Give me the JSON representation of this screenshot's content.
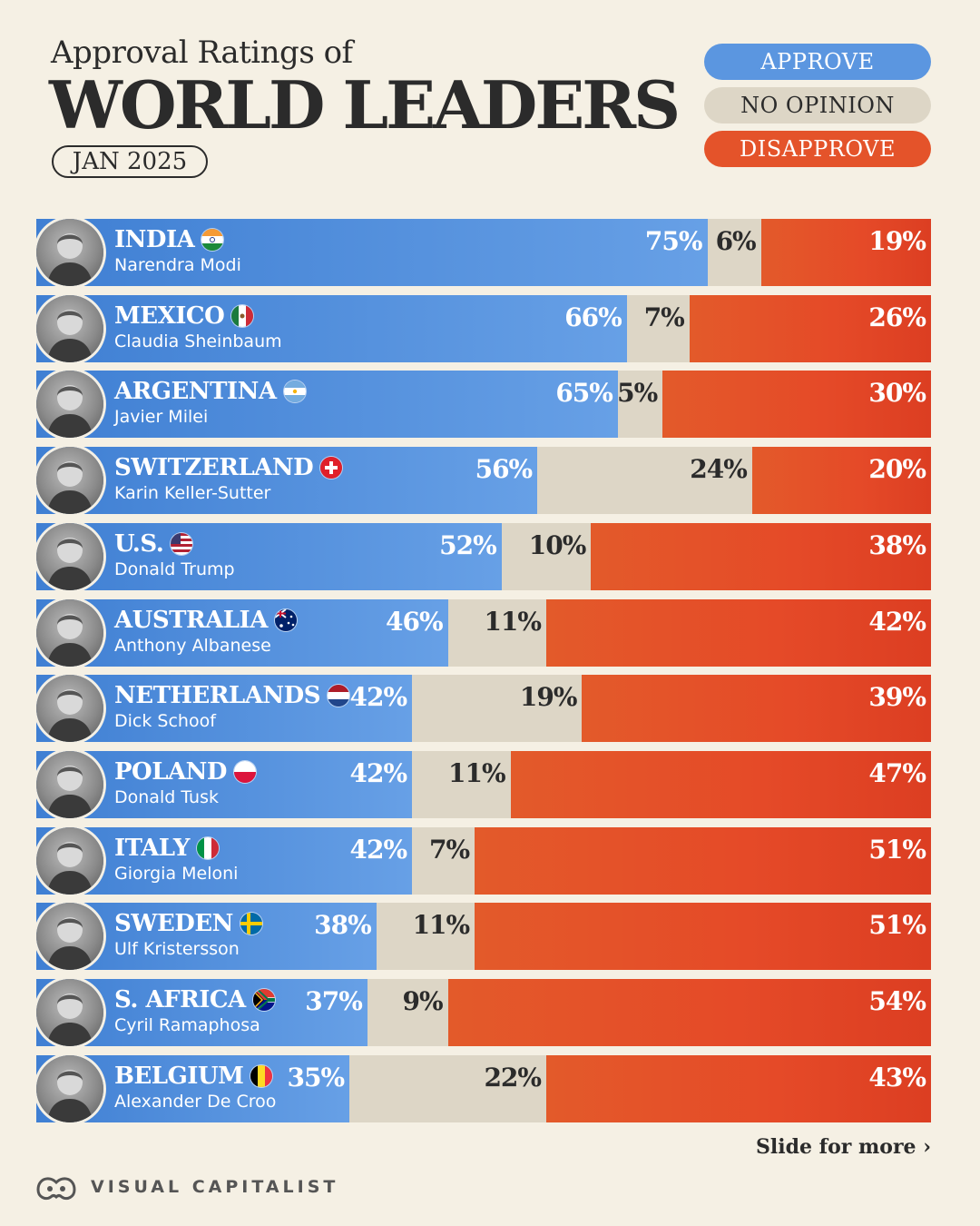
{
  "header": {
    "subtitle": "Approval Ratings of",
    "title": "WORLD LEADERS",
    "date": "JAN 2025"
  },
  "legend": {
    "approve": "APPROVE",
    "no_opinion": "NO OPINION",
    "disapprove": "DISAPPROVE"
  },
  "colors": {
    "approve": "#5b96e0",
    "no_opinion": "#ddd6c6",
    "disapprove": "#e4532a",
    "background": "#f5f0e4"
  },
  "chart_data": {
    "type": "bar",
    "orientation": "horizontal",
    "stacked": true,
    "unit": "%",
    "series": [
      {
        "name": "APPROVE",
        "values": [
          75,
          66,
          65,
          56,
          52,
          46,
          42,
          42,
          42,
          38,
          37,
          35
        ]
      },
      {
        "name": "NO OPINION",
        "values": [
          6,
          7,
          5,
          24,
          10,
          11,
          19,
          11,
          7,
          11,
          9,
          22
        ]
      },
      {
        "name": "DISAPPROVE",
        "values": [
          19,
          26,
          30,
          20,
          38,
          42,
          39,
          47,
          51,
          51,
          54,
          43
        ]
      }
    ],
    "rows": [
      {
        "country": "INDIA",
        "leader": "Narendra Modi",
        "flag": "flag-india-icon",
        "approve": 75,
        "no_opinion": 6,
        "disapprove": 19
      },
      {
        "country": "MEXICO",
        "leader": "Claudia Sheinbaum",
        "flag": "flag-mexico-icon",
        "approve": 66,
        "no_opinion": 7,
        "disapprove": 26
      },
      {
        "country": "ARGENTINA",
        "leader": "Javier Milei",
        "flag": "flag-argentina-icon",
        "approve": 65,
        "no_opinion": 5,
        "disapprove": 30
      },
      {
        "country": "SWITZERLAND",
        "leader": "Karin Keller-Sutter",
        "flag": "flag-switzerland-icon",
        "approve": 56,
        "no_opinion": 24,
        "disapprove": 20
      },
      {
        "country": "U.S.",
        "leader": "Donald Trump",
        "flag": "flag-usa-icon",
        "approve": 52,
        "no_opinion": 10,
        "disapprove": 38
      },
      {
        "country": "AUSTRALIA",
        "leader": "Anthony Albanese",
        "flag": "flag-australia-icon",
        "approve": 46,
        "no_opinion": 11,
        "disapprove": 42
      },
      {
        "country": "NETHERLANDS",
        "leader": "Dick Schoof",
        "flag": "flag-netherlands-icon",
        "approve": 42,
        "no_opinion": 19,
        "disapprove": 39
      },
      {
        "country": "POLAND",
        "leader": "Donald Tusk",
        "flag": "flag-poland-icon",
        "approve": 42,
        "no_opinion": 11,
        "disapprove": 47
      },
      {
        "country": "ITALY",
        "leader": "Giorgia Meloni",
        "flag": "flag-italy-icon",
        "approve": 42,
        "no_opinion": 7,
        "disapprove": 51
      },
      {
        "country": "SWEDEN",
        "leader": "Ulf Kristersson",
        "flag": "flag-sweden-icon",
        "approve": 38,
        "no_opinion": 11,
        "disapprove": 51
      },
      {
        "country": "S. AFRICA",
        "leader": "Cyril Ramaphosa",
        "flag": "flag-south-africa-icon",
        "approve": 37,
        "no_opinion": 9,
        "disapprove": 54
      },
      {
        "country": "BELGIUM",
        "leader": "Alexander De Croo",
        "flag": "flag-belgium-icon",
        "approve": 35,
        "no_opinion": 22,
        "disapprove": 43
      }
    ]
  },
  "footer": {
    "slide_hint": "Slide for more ›",
    "brand": "VISUAL CAPITALIST"
  }
}
